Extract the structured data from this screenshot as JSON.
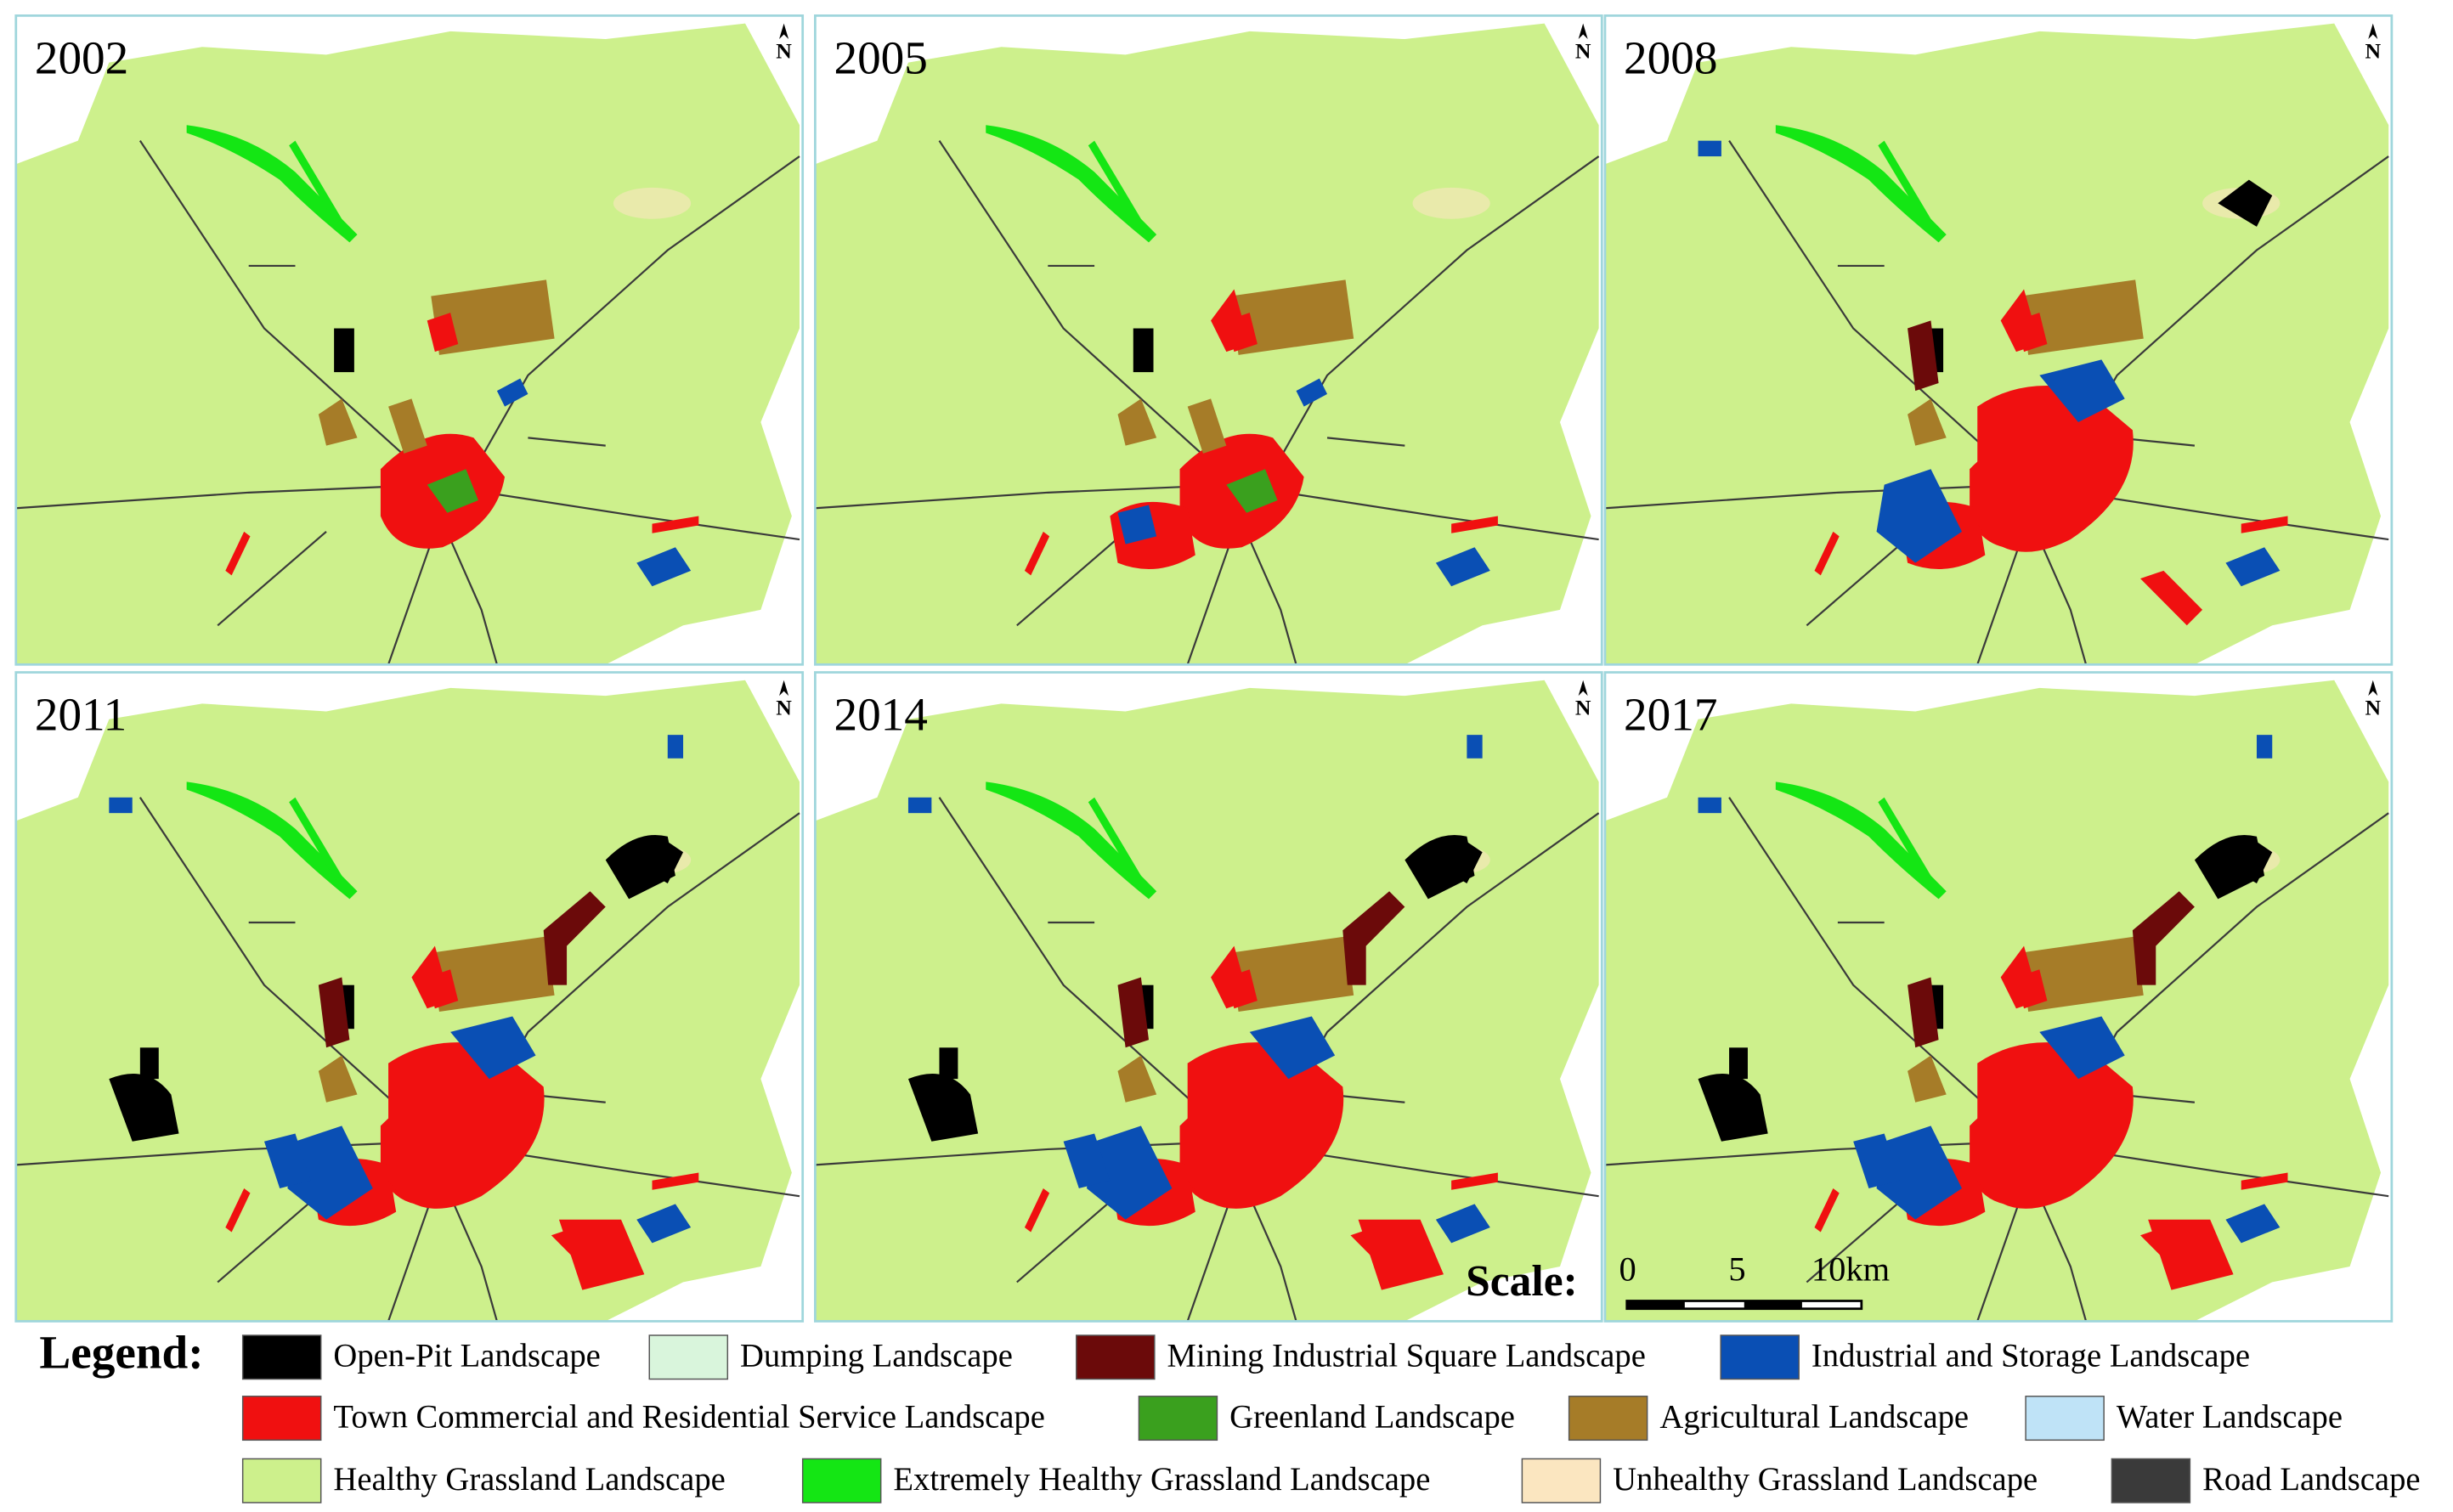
{
  "panels": [
    {
      "year": "2002",
      "north": "N"
    },
    {
      "year": "2005",
      "north": "N"
    },
    {
      "year": "2008",
      "north": "N"
    },
    {
      "year": "2011",
      "north": "N"
    },
    {
      "year": "2014",
      "north": "N"
    },
    {
      "year": "2017",
      "north": "N"
    }
  ],
  "scale": {
    "title": "Scale:",
    "ticks": [
      "0",
      "5",
      "10km"
    ]
  },
  "legend": {
    "title": "Legend:",
    "items": [
      {
        "label": "Open-Pit Landscape",
        "color": "#000000"
      },
      {
        "label": "Dumping Landscape",
        "color": "#d9f5dc"
      },
      {
        "label": "Mining Industrial Square Landscape",
        "color": "#6b0a0a"
      },
      {
        "label": "Industrial and Storage Landscape",
        "color": "#0a4fb4"
      },
      {
        "label": "Town Commercial and Residential Service Landscape",
        "color": "#f01010"
      },
      {
        "label": "Greenland Landscape",
        "color": "#3aa01e"
      },
      {
        "label": "Agricultural Landscape",
        "color": "#a67c28"
      },
      {
        "label": "Water Landscape",
        "color": "#bfe3f7"
      },
      {
        "label": "Healthy Grassland Landscape",
        "color": "#cdf08c"
      },
      {
        "label": "Extremely Healthy Grassland Landscape",
        "color": "#14e614"
      },
      {
        "label": "Unhealthy Grassland Landscape",
        "color": "#fbe6c0"
      },
      {
        "label": "Road Landscape",
        "color": "#3a3a3a"
      }
    ]
  }
}
